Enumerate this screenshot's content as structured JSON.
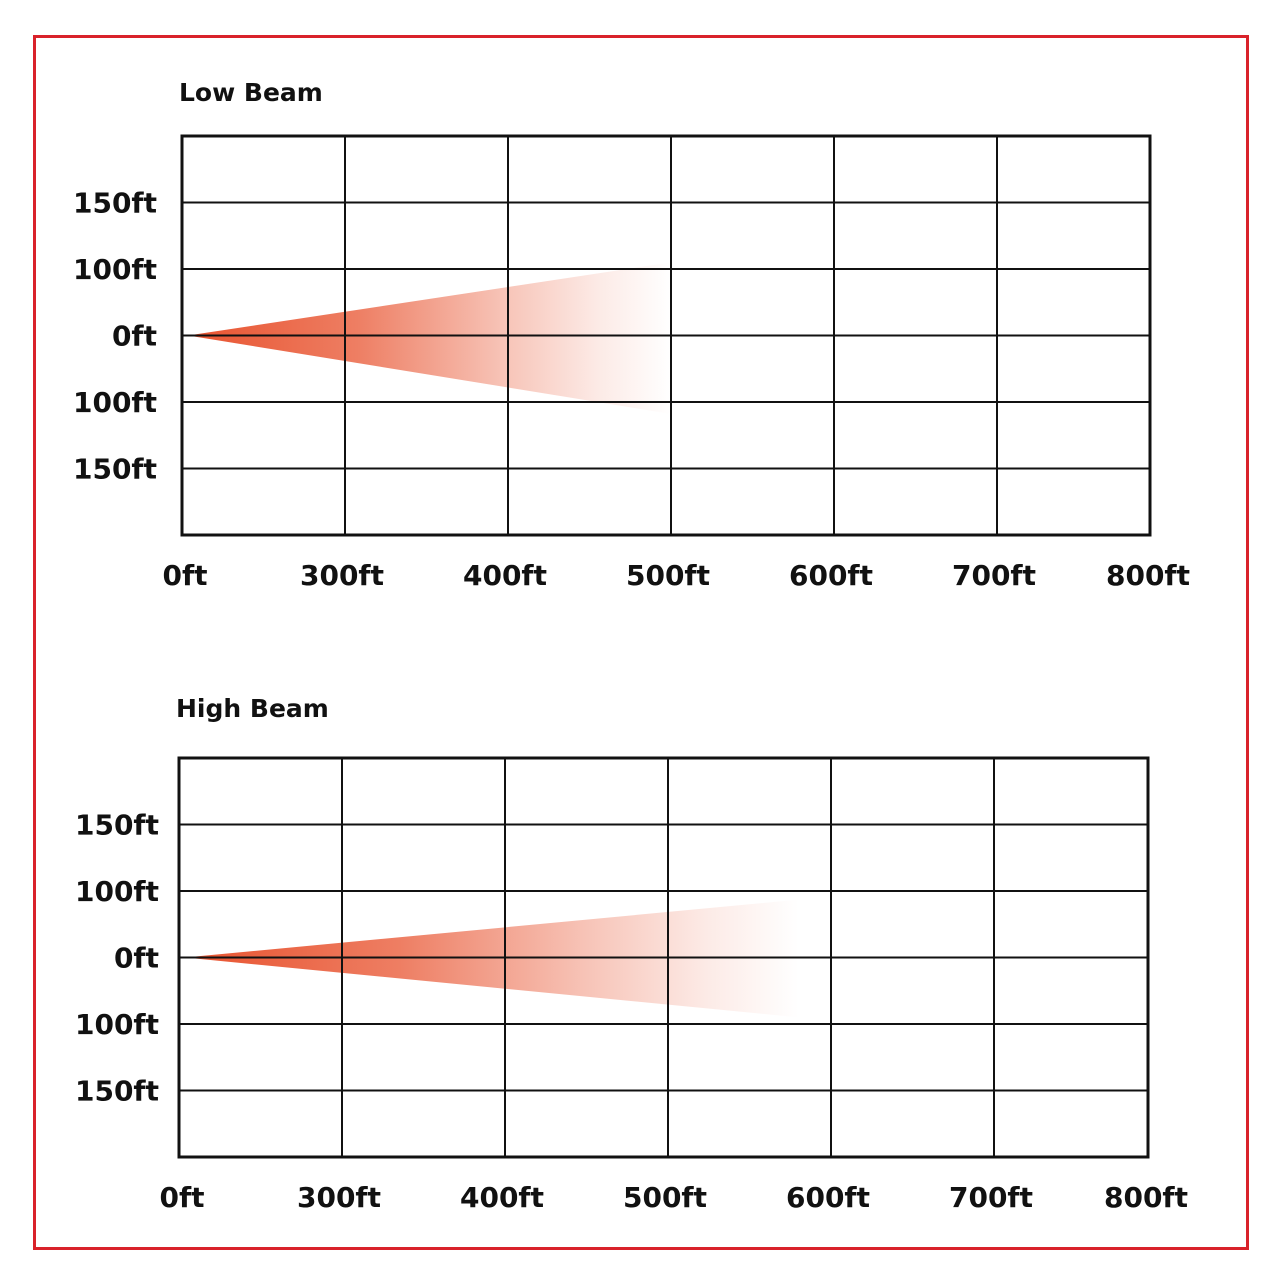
{
  "colors": {
    "frame": "#d9222a",
    "beam": "#e8532f",
    "grid": "#111111"
  },
  "chart_data": [
    {
      "type": "area",
      "title": "Low Beam",
      "x_tick_labels": [
        "0ft",
        "300ft",
        "400ft",
        "500ft",
        "600ft",
        "700ft",
        "800ft"
      ],
      "x_tick_values": [
        0,
        300,
        400,
        500,
        600,
        700,
        800
      ],
      "y_tick_labels": [
        "150ft",
        "100ft",
        "0ft",
        "100ft",
        "150ft"
      ],
      "y_tick_values": [
        150,
        100,
        0,
        -100,
        -150
      ],
      "grid": true,
      "beam": {
        "origin_ft": 0,
        "reach_ft": 500,
        "spread_top_ft": 105,
        "spread_bottom_ft": -109,
        "fade": "gradient to white"
      }
    },
    {
      "type": "area",
      "title": "High Beam",
      "x_tick_labels": [
        "0ft",
        "300ft",
        "400ft",
        "500ft",
        "600ft",
        "700ft",
        "800ft"
      ],
      "x_tick_values": [
        0,
        300,
        400,
        500,
        600,
        700,
        800
      ],
      "y_tick_labels": [
        "150ft",
        "100ft",
        "0ft",
        "100ft",
        "150ft"
      ],
      "y_tick_values": [
        150,
        100,
        0,
        -100,
        -150
      ],
      "grid": true,
      "beam": {
        "origin_ft": 0,
        "reach_ft": 580,
        "spread_top_ft": 87,
        "spread_bottom_ft": -90,
        "fade": "gradient to white"
      }
    }
  ]
}
